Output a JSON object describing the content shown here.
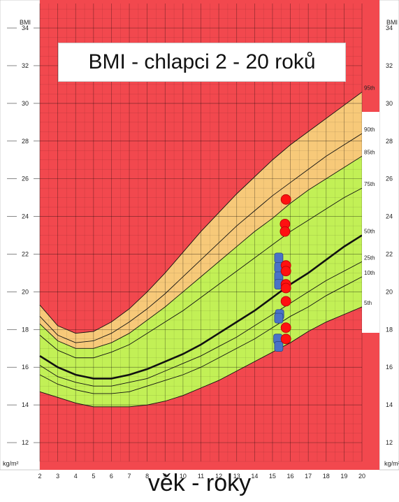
{
  "chart_data": {
    "type": "line",
    "title": "BMI - chlapci 2 - 20 roků",
    "xlabel": "věk - roky",
    "ylabel_top": "BMI",
    "unit_label": "kg/m²",
    "xlim": [
      2,
      20
    ],
    "ylim": [
      11,
      35.3
    ],
    "x_ticks": [
      2,
      3,
      4,
      5,
      6,
      7,
      8,
      9,
      10,
      11,
      12,
      13,
      14,
      15,
      16,
      17,
      18,
      19,
      20
    ],
    "y_ticks": [
      12,
      14,
      16,
      18,
      20,
      22,
      24,
      26,
      28,
      30,
      32,
      34
    ],
    "background_color": "#f2484e",
    "zone_colors": {
      "overweight": "#f7c979",
      "normal": "#c2f056",
      "outside": "#f2484e"
    },
    "percentile_x": [
      2,
      3,
      4,
      5,
      6,
      7,
      8,
      9,
      10,
      11,
      12,
      13,
      14,
      15,
      16,
      17,
      18,
      19,
      20
    ],
    "series": [
      {
        "name": "95th",
        "values": [
          19.3,
          18.2,
          17.8,
          17.9,
          18.4,
          19.1,
          20.0,
          21.0,
          22.1,
          23.2,
          24.2,
          25.2,
          26.1,
          27.0,
          27.8,
          28.5,
          29.2,
          29.9,
          30.6
        ]
      },
      {
        "name": "90th",
        "values": [
          18.7,
          17.7,
          17.3,
          17.4,
          17.8,
          18.4,
          19.1,
          19.9,
          20.8,
          21.7,
          22.6,
          23.5,
          24.3,
          25.1,
          25.8,
          26.5,
          27.2,
          27.8,
          28.4
        ]
      },
      {
        "name": "85th",
        "values": [
          18.3,
          17.4,
          17.0,
          17.0,
          17.3,
          17.8,
          18.5,
          19.2,
          20.0,
          20.8,
          21.6,
          22.4,
          23.2,
          23.9,
          24.7,
          25.4,
          26.0,
          26.6,
          27.2
        ]
      },
      {
        "name": "75th",
        "values": [
          17.7,
          16.9,
          16.5,
          16.5,
          16.8,
          17.2,
          17.8,
          18.4,
          19.0,
          19.7,
          20.4,
          21.1,
          21.8,
          22.5,
          23.2,
          23.8,
          24.4,
          25.0,
          25.5
        ]
      },
      {
        "name": "50th",
        "values": [
          16.6,
          16.0,
          15.6,
          15.4,
          15.4,
          15.6,
          15.9,
          16.3,
          16.7,
          17.2,
          17.8,
          18.4,
          19.0,
          19.7,
          20.4,
          21.0,
          21.7,
          22.4,
          23.0
        ]
      },
      {
        "name": "25th",
        "values": [
          16.1,
          15.5,
          15.2,
          15.0,
          15.0,
          15.2,
          15.4,
          15.8,
          16.2,
          16.6,
          17.1,
          17.6,
          18.2,
          18.8,
          19.4,
          20.0,
          20.6,
          21.1,
          21.6
        ]
      },
      {
        "name": "10th",
        "values": [
          15.6,
          15.1,
          14.8,
          14.6,
          14.6,
          14.7,
          15.0,
          15.3,
          15.6,
          16.0,
          16.5,
          17.0,
          17.5,
          18.1,
          18.7,
          19.2,
          19.8,
          20.3,
          20.8
        ]
      },
      {
        "name": "5th",
        "values": [
          14.7,
          14.4,
          14.1,
          13.9,
          13.9,
          13.9,
          14.0,
          14.2,
          14.5,
          14.9,
          15.3,
          15.8,
          16.3,
          16.8,
          17.3,
          17.9,
          18.4,
          18.8,
          19.2
        ]
      }
    ],
    "points_blue": [
      {
        "x": 15.35,
        "y": 21.8
      },
      {
        "x": 15.35,
        "y": 21.3
      },
      {
        "x": 15.35,
        "y": 20.8
      },
      {
        "x": 15.35,
        "y": 20.4
      },
      {
        "x": 15.4,
        "y": 18.8
      },
      {
        "x": 15.35,
        "y": 18.6
      },
      {
        "x": 15.3,
        "y": 17.5
      },
      {
        "x": 15.35,
        "y": 17.1
      }
    ],
    "points_red": [
      {
        "x": 15.75,
        "y": 24.9
      },
      {
        "x": 15.7,
        "y": 23.6
      },
      {
        "x": 15.7,
        "y": 23.2
      },
      {
        "x": 15.75,
        "y": 21.4
      },
      {
        "x": 15.75,
        "y": 21.1
      },
      {
        "x": 15.75,
        "y": 20.4
      },
      {
        "x": 15.75,
        "y": 20.2
      },
      {
        "x": 15.75,
        "y": 19.5
      },
      {
        "x": 15.75,
        "y": 18.1
      },
      {
        "x": 15.75,
        "y": 17.5
      }
    ]
  }
}
